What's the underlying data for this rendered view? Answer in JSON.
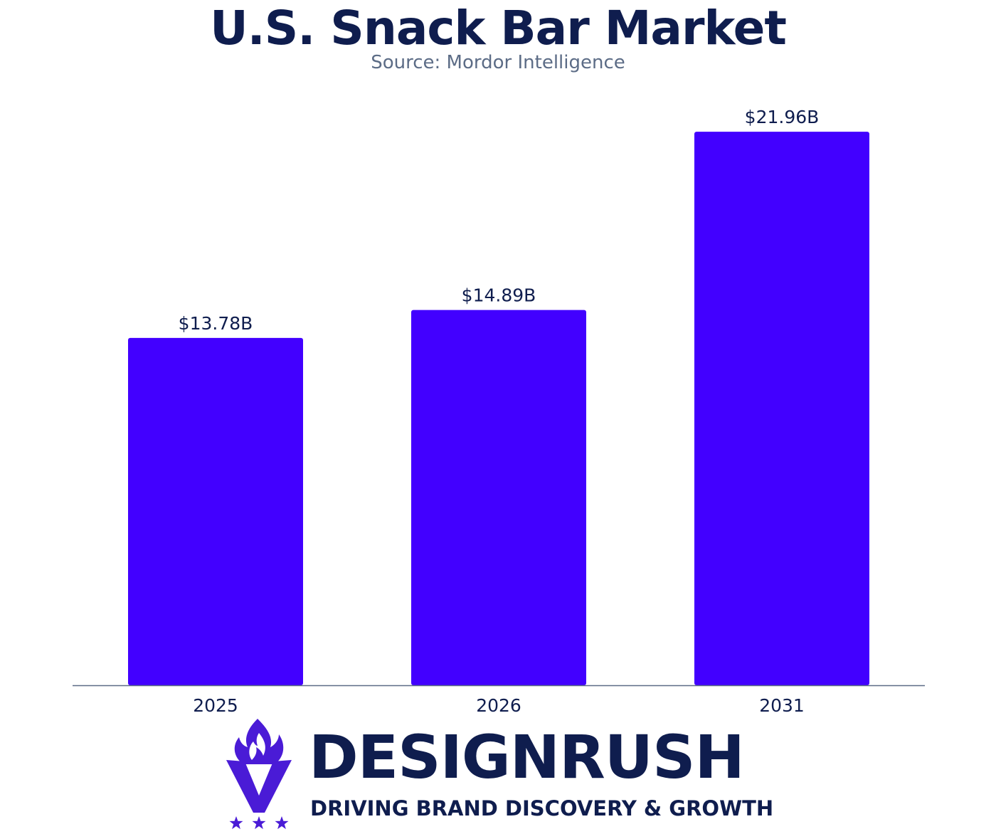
{
  "header": {
    "title": "U.S. Snack Bar Market",
    "subtitle": "Source: Mordor Intelligence"
  },
  "colors": {
    "bar": "#4200ff",
    "title": "#0f1d4e",
    "subtitle": "#5c6c86",
    "text": "#0f1d4e",
    "axis": "#5c6c86",
    "logo_text": "#0f1d4e",
    "logo_mark": "#4a1bd6"
  },
  "chart_data": {
    "type": "bar",
    "title": "U.S. Snack Bar Market",
    "subtitle": "Source: Mordor Intelligence",
    "categories": [
      "2025",
      "2026",
      "2031"
    ],
    "values": [
      13.78,
      14.89,
      21.96
    ],
    "data_labels": [
      "$13.78B",
      "$14.89B",
      "$21.96B"
    ],
    "xlabel": "",
    "ylabel": "",
    "ylim": [
      0,
      25
    ],
    "grid": false,
    "legend": "none"
  },
  "logo": {
    "wordmark": "DESIGNRUSH",
    "tagline": "DRIVING BRAND DISCOVERY & GROWTH",
    "icon": "designrush-flame-v-icon",
    "stars_icon": "three-stars-icon"
  }
}
